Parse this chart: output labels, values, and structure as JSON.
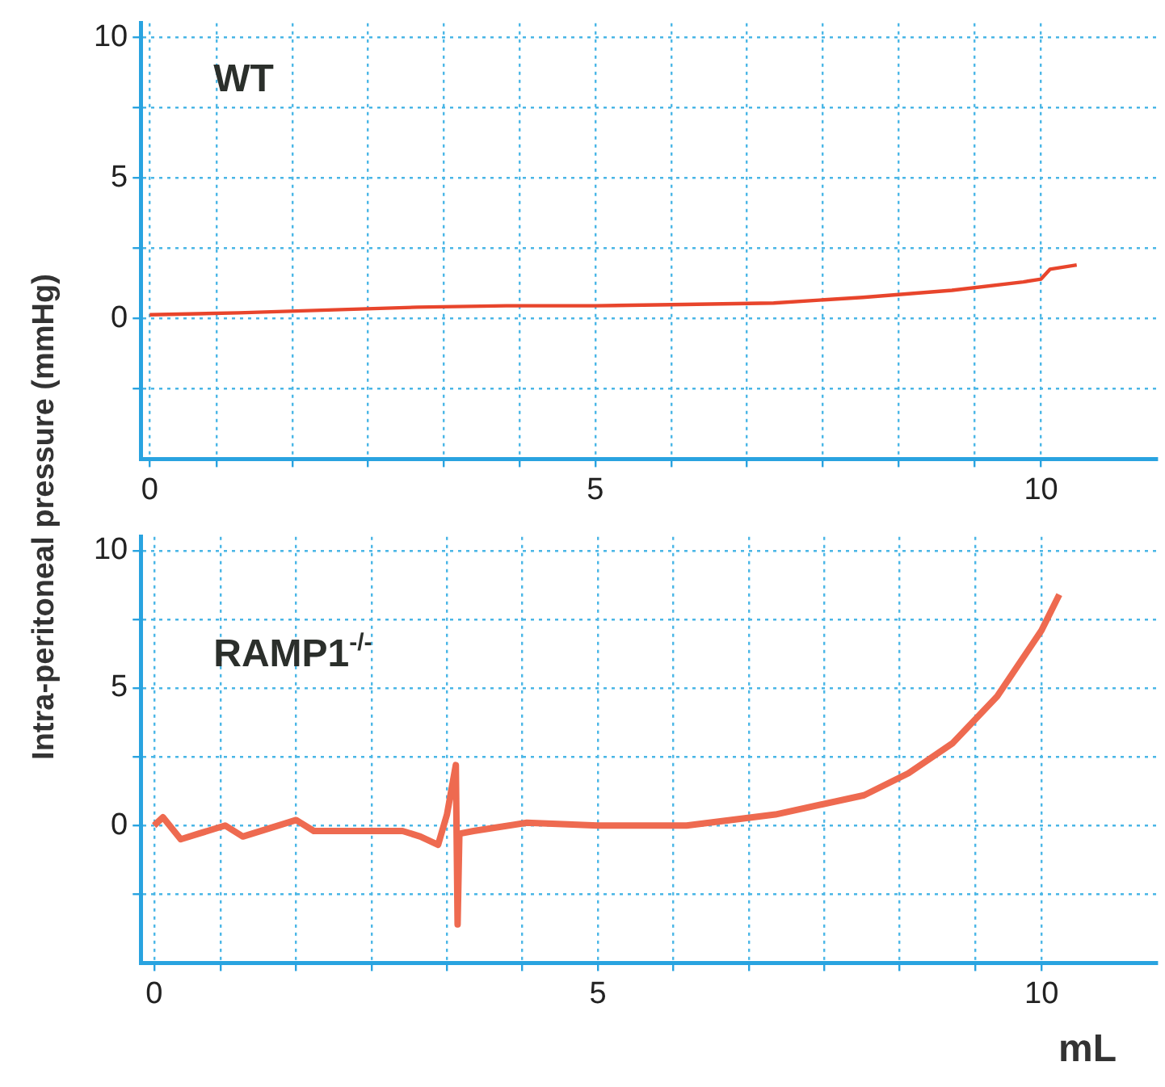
{
  "chart_data": [
    {
      "type": "line",
      "ylabel": "Intra-peritoneal pressure (mmHg)",
      "annotations": [
        "WT"
      ],
      "grid": true,
      "legend": false,
      "marker": "none",
      "line_style": "solid",
      "xlim": [
        -0.1,
        11.3
      ],
      "ylim": [
        -5,
        10.5
      ],
      "xticks": [
        0,
        {
          "value": 0.75,
          "label": null
        },
        {
          "value": 1.6,
          "label": null
        },
        {
          "value": 2.45,
          "label": null
        },
        {
          "value": 3.3,
          "label": null
        },
        {
          "value": 4.15,
          "label": null
        },
        5,
        {
          "value": 5.85,
          "label": null
        },
        {
          "value": 6.7,
          "label": null
        },
        {
          "value": 7.55,
          "label": null
        },
        {
          "value": 8.4,
          "label": null
        },
        {
          "value": 9.25,
          "label": null
        },
        10
      ],
      "yticks": [
        {
          "value": -2.5,
          "label": null
        },
        0,
        {
          "value": 2.5,
          "label": null
        },
        5,
        {
          "value": 7.5,
          "label": null
        },
        10
      ],
      "series": [
        {
          "color": "#e8452c",
          "x": [
            0,
            1,
            2,
            3,
            4,
            5,
            6,
            7,
            8,
            9,
            9.8,
            10,
            10.1,
            10.4
          ],
          "values": [
            0.13,
            0.2,
            0.3,
            0.4,
            0.45,
            0.45,
            0.5,
            0.55,
            0.75,
            1.0,
            1.3,
            1.4,
            1.75,
            1.9
          ]
        }
      ]
    },
    {
      "type": "line",
      "xlabel": "mL",
      "annotations": [
        "RAMP1$^{-/-}$"
      ],
      "grid": true,
      "legend": false,
      "marker": "none",
      "line_style": "solid",
      "xlim": [
        -0.15,
        11.3
      ],
      "ylim": [
        -5,
        10.5
      ],
      "xticks": [
        0,
        {
          "value": 0.75,
          "label": null
        },
        {
          "value": 1.6,
          "label": null
        },
        {
          "value": 2.45,
          "label": null
        },
        {
          "value": 3.3,
          "label": null
        },
        {
          "value": 4.15,
          "label": null
        },
        5,
        {
          "value": 5.85,
          "label": null
        },
        {
          "value": 6.7,
          "label": null
        },
        {
          "value": 7.55,
          "label": null
        },
        {
          "value": 8.4,
          "label": null
        },
        {
          "value": 9.25,
          "label": null
        },
        10
      ],
      "yticks": [
        {
          "value": -2.5,
          "label": null
        },
        0,
        {
          "value": 2.5,
          "label": null
        },
        5,
        {
          "value": 7.5,
          "label": null
        },
        10
      ],
      "series": [
        {
          "color": "#ee6a50",
          "x": [
            0,
            0.1,
            0.3,
            0.5,
            0.8,
            1.0,
            1.3,
            1.6,
            1.8,
            2.2,
            2.8,
            3.0,
            3.2,
            3.3,
            3.4,
            3.42,
            3.44,
            3.6,
            4.2,
            5,
            6,
            7,
            8,
            8.5,
            9,
            9.5,
            10,
            10.2
          ],
          "values": [
            0,
            0.3,
            -0.5,
            -0.3,
            0,
            -0.4,
            -0.1,
            0.2,
            -0.2,
            -0.2,
            -0.2,
            -0.4,
            -0.7,
            0.4,
            2.2,
            -3.6,
            -0.3,
            -0.2,
            0.1,
            0,
            0,
            0.4,
            1.1,
            1.9,
            3.0,
            4.7,
            7.1,
            8.4
          ]
        }
      ]
    }
  ]
}
